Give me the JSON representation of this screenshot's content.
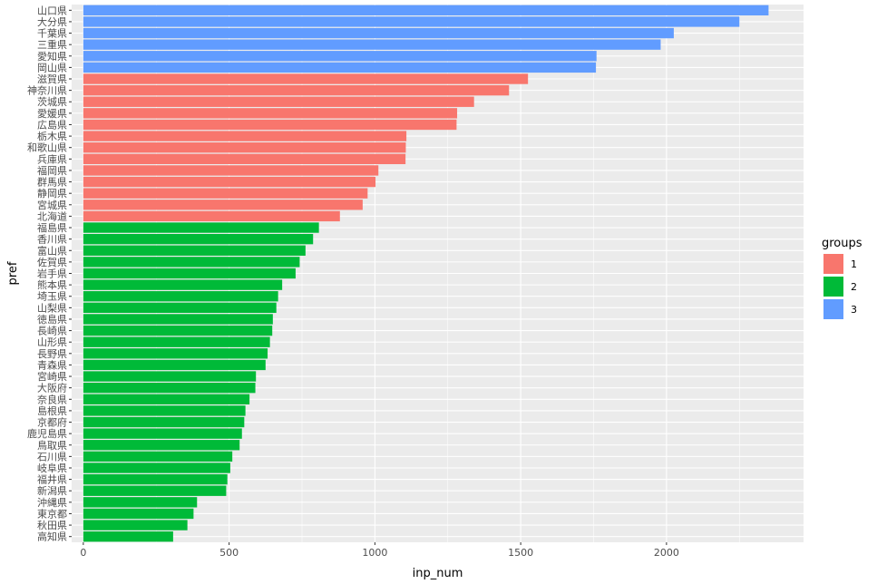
{
  "chart_data": {
    "type": "bar",
    "orientation": "horizontal",
    "xlabel": "inp_num",
    "ylabel": "pref",
    "xlim": [
      -40,
      2470
    ],
    "x_ticks": [
      0,
      500,
      1000,
      1500,
      2000
    ],
    "grid": true,
    "legend_position": "right",
    "legend_title": "groups",
    "groups": [
      {
        "name": "1",
        "color": "#F8766D"
      },
      {
        "name": "2",
        "color": "#00BA38"
      },
      {
        "name": "3",
        "color": "#619CFF"
      }
    ],
    "categories": [
      "山口県",
      "大分県",
      "千葉県",
      "三重県",
      "愛知県",
      "岡山県",
      "滋賀県",
      "神奈川県",
      "茨城県",
      "愛媛県",
      "広島県",
      "栃木県",
      "和歌山県",
      "兵庫県",
      "福岡県",
      "群馬県",
      "静岡県",
      "宮城県",
      "北海道",
      "福島県",
      "香川県",
      "富山県",
      "佐賀県",
      "岩手県",
      "熊本県",
      "埼玉県",
      "山梨県",
      "徳島県",
      "長崎県",
      "山形県",
      "長野県",
      "青森県",
      "宮崎県",
      "大阪府",
      "奈良県",
      "島根県",
      "京都府",
      "鹿児島県",
      "鳥取県",
      "石川県",
      "岐阜県",
      "福井県",
      "新潟県",
      "沖縄県",
      "東京都",
      "秋田県",
      "高知県"
    ],
    "values": [
      2350,
      2250,
      2025,
      1980,
      1760,
      1758,
      1525,
      1460,
      1340,
      1282,
      1280,
      1108,
      1106,
      1105,
      1012,
      1002,
      975,
      958,
      880,
      808,
      788,
      762,
      742,
      728,
      682,
      668,
      662,
      650,
      648,
      640,
      632,
      625,
      592,
      590,
      570,
      556,
      552,
      544,
      536,
      511,
      504,
      494,
      490,
      390,
      378,
      357,
      308
    ],
    "value_groups": [
      "3",
      "3",
      "3",
      "3",
      "3",
      "3",
      "1",
      "1",
      "1",
      "1",
      "1",
      "1",
      "1",
      "1",
      "1",
      "1",
      "1",
      "1",
      "1",
      "2",
      "2",
      "2",
      "2",
      "2",
      "2",
      "2",
      "2",
      "2",
      "2",
      "2",
      "2",
      "2",
      "2",
      "2",
      "2",
      "2",
      "2",
      "2",
      "2",
      "2",
      "2",
      "2",
      "2",
      "2",
      "2",
      "2",
      "2"
    ]
  }
}
